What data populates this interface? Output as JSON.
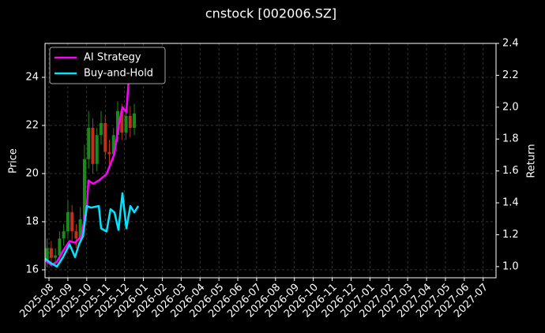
{
  "chart_data": {
    "type": "candlestick",
    "title": "cnstock [002006.SZ]",
    "ylabel": "Price",
    "y2label": "Return",
    "xlim": [
      -0.21,
      23.68
    ],
    "ylim": [
      15.67,
      25.41
    ],
    "y2lim": [
      0.93,
      2.4
    ],
    "grid": true,
    "legend": "upper left",
    "up_color": "#1a8a1a",
    "down_color": "#c0301a",
    "xticks": [
      {
        "value": 0,
        "label": "2025-08"
      },
      {
        "value": 1,
        "label": "2025-09"
      },
      {
        "value": 2,
        "label": "2025-10"
      },
      {
        "value": 3,
        "label": "2025-11"
      },
      {
        "value": 4,
        "label": "2025-12"
      },
      {
        "value": 5,
        "label": "2026-01"
      },
      {
        "value": 6,
        "label": "2026-02"
      },
      {
        "value": 7,
        "label": "2026-03"
      },
      {
        "value": 8,
        "label": "2026-04"
      },
      {
        "value": 9,
        "label": "2026-05"
      },
      {
        "value": 10,
        "label": "2026-06"
      },
      {
        "value": 11,
        "label": "2026-07"
      },
      {
        "value": 12,
        "label": "2026-08"
      },
      {
        "value": 13,
        "label": "2026-09"
      },
      {
        "value": 14,
        "label": "2026-10"
      },
      {
        "value": 15,
        "label": "2026-11"
      },
      {
        "value": 16,
        "label": "2026-12"
      },
      {
        "value": 17,
        "label": "2027-01"
      },
      {
        "value": 18,
        "label": "2027-02"
      },
      {
        "value": 19,
        "label": "2027-03"
      },
      {
        "value": 20,
        "label": "2027-04"
      },
      {
        "value": 21,
        "label": "2027-05"
      },
      {
        "value": 22,
        "label": "2027-06"
      },
      {
        "value": 23,
        "label": "2027-07"
      }
    ],
    "yticks": [
      16,
      18,
      20,
      22,
      24
    ],
    "y2ticks": [
      {
        "value": 1.0,
        "label": "1.0"
      },
      {
        "value": 1.2,
        "label": "1.2"
      },
      {
        "value": 1.4,
        "label": "1.4"
      },
      {
        "value": 1.6,
        "label": "1.6"
      },
      {
        "value": 1.8,
        "label": "1.8"
      },
      {
        "value": 2.0,
        "label": "2.0"
      },
      {
        "value": 2.2,
        "label": "2.2"
      },
      {
        "value": 2.4,
        "label": "2.4"
      }
    ],
    "candles": {
      "x": [
        -0.1,
        0.12,
        0.34,
        0.56,
        0.78,
        1.0,
        1.22,
        1.44,
        1.66,
        1.88,
        2.1,
        2.32,
        2.54,
        2.76,
        2.98,
        3.2,
        3.42,
        3.64,
        3.86,
        4.08,
        4.3,
        4.52
      ],
      "open": [
        16.4,
        16.9,
        16.5,
        16.6,
        17.3,
        17.6,
        18.4,
        17.6,
        17.3,
        18.1,
        20.6,
        21.9,
        20.4,
        21.6,
        22.1,
        20.9,
        20.8,
        21.6,
        22.6,
        21.7,
        22.4,
        21.9
      ],
      "high": [
        17.3,
        17.2,
        16.9,
        17.6,
        17.9,
        18.9,
        18.7,
        17.9,
        18.6,
        21.2,
        22.6,
        22.3,
        21.9,
        22.6,
        22.4,
        21.4,
        21.9,
        23.0,
        22.9,
        22.7,
        22.8,
        22.9
      ],
      "low": [
        16.1,
        16.2,
        16.2,
        16.4,
        17.0,
        17.3,
        17.2,
        16.9,
        17.1,
        17.8,
        20.2,
        20.0,
        20.1,
        21.2,
        20.6,
        20.4,
        20.5,
        21.3,
        21.4,
        21.4,
        21.5,
        21.6
      ],
      "close": [
        16.9,
        16.5,
        16.6,
        17.3,
        17.6,
        18.4,
        17.6,
        17.3,
        18.1,
        20.6,
        21.9,
        20.4,
        21.6,
        22.1,
        20.9,
        20.8,
        21.6,
        22.6,
        21.7,
        22.4,
        21.9,
        22.5
      ]
    },
    "series": [
      {
        "name": "AI Strategy",
        "color": "#ff00ff",
        "axis": "y2",
        "x": [
          -0.21,
          0.13,
          0.42,
          0.75,
          1.09,
          1.38,
          1.72,
          2.01,
          2.09,
          2.34,
          2.64,
          3.05,
          3.47,
          3.68,
          3.89,
          4.1,
          4.23,
          4.44
        ],
        "values": [
          1.04,
          1.01,
          1.03,
          1.1,
          1.16,
          1.15,
          1.19,
          1.39,
          1.54,
          1.52,
          1.54,
          1.58,
          1.71,
          1.88,
          2.0,
          1.97,
          2.18,
          2.35
        ]
      },
      {
        "name": "Buy-and-Hold",
        "color": "#00e5ff",
        "axis": "y2",
        "x": [
          -0.21,
          0.13,
          0.42,
          0.75,
          1.09,
          1.38,
          1.59,
          1.8,
          2.01,
          2.22,
          2.64,
          2.76,
          3.05,
          3.26,
          3.47,
          3.68,
          3.89,
          4.1,
          4.31,
          4.52,
          4.73
        ],
        "values": [
          1.05,
          1.02,
          1.0,
          1.06,
          1.14,
          1.06,
          1.14,
          1.19,
          1.38,
          1.37,
          1.38,
          1.24,
          1.22,
          1.36,
          1.34,
          1.23,
          1.46,
          1.24,
          1.38,
          1.34,
          1.38
        ]
      }
    ]
  }
}
